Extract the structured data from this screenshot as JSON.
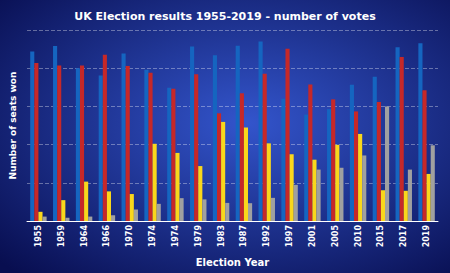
{
  "chart_data": {
    "type": "bar",
    "title": "UK Election results 1955-2019 - number of votes",
    "xlabel": "Election Year",
    "ylabel": "Number of seats won",
    "categories": [
      "1955",
      "1959",
      "1964",
      "1966",
      "1970",
      "1974",
      "1974",
      "1979",
      "1983",
      "1987",
      "1992",
      "1997",
      "2001",
      "2005",
      "2010",
      "2015",
      "2017",
      "2019"
    ],
    "series": [
      {
        "color": "#1565c0",
        "values": [
          13310891,
          13749830,
          12001396,
          11418433,
          13145123,
          11868906,
          10464817,
          13697690,
          13012316,
          13760935,
          14093007,
          9600943,
          8357615,
          8784915,
          10706647,
          11334576,
          13636684,
          13966565
        ]
      },
      {
        "color": "#c62828",
        "values": [
          12405254,
          12215538,
          12205814,
          13064951,
          12179341,
          11639243,
          10394864,
          11532218,
          8456934,
          10029807,
          11559735,
          13518167,
          10724953,
          9552436,
          8606517,
          9347304,
          12874655,
          10269051
        ]
      },
      {
        "color": "#f9d71c",
        "values": [
          722405,
          1638571,
          3092878,
          2327533,
          2117035,
          6063470,
          5346754,
          4313804,
          7780949,
          7341633,
          6099062,
          5242947,
          4814321,
          5985454,
          6836824,
          2415888,
          2371861,
          3696423
        ]
      },
      {
        "color": "#a0a0a0",
        "values": [
          346515,
          254877,
          348914,
          452689,
          903299,
          1346948,
          1793798,
          1697365,
          1420938,
          1398847,
          1817929,
          2838067,
          4038949,
          4181026,
          5148095,
          8997968,
          4035958,
          5946952
        ]
      }
    ],
    "ylim": [
      0,
      15000000
    ],
    "yticks": [
      0,
      3000000,
      6000000,
      9000000,
      12000000,
      15000000
    ],
    "tick_labels": "x",
    "grid": true
  }
}
